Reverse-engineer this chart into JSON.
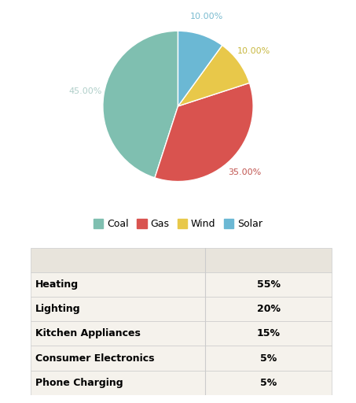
{
  "pie_labels": [
    "Coal",
    "Gas",
    "Wind",
    "Solar"
  ],
  "pie_values": [
    45,
    35,
    10,
    10
  ],
  "pie_colors": [
    "#7fbfb0",
    "#d9534f",
    "#e8c84a",
    "#6bb8d4"
  ],
  "pie_autopct_values": [
    "45.00%",
    "35.00%",
    "10.00%",
    "10.00%"
  ],
  "autopct_colors": [
    "#b0cfc9",
    "#c0544f",
    "#c8b840",
    "#7abbd0"
  ],
  "legend_labels": [
    "Coal",
    "Gas",
    "Wind",
    "Solar"
  ],
  "table_rows": [
    [
      "Heating",
      "55%"
    ],
    [
      "Lighting",
      "20%"
    ],
    [
      "Kitchen Appliances",
      "15%"
    ],
    [
      "Consumer Electronics",
      "5%"
    ],
    [
      "Phone Charging",
      "5%"
    ]
  ],
  "table_bg_header": "#e8e4dc",
  "table_bg_row": "#f5f2ec",
  "table_line_color": "#cccccc",
  "background_color": "#ffffff",
  "label_fontsize": 8,
  "legend_fontsize": 9,
  "table_fontsize": 9,
  "startangle": 90
}
